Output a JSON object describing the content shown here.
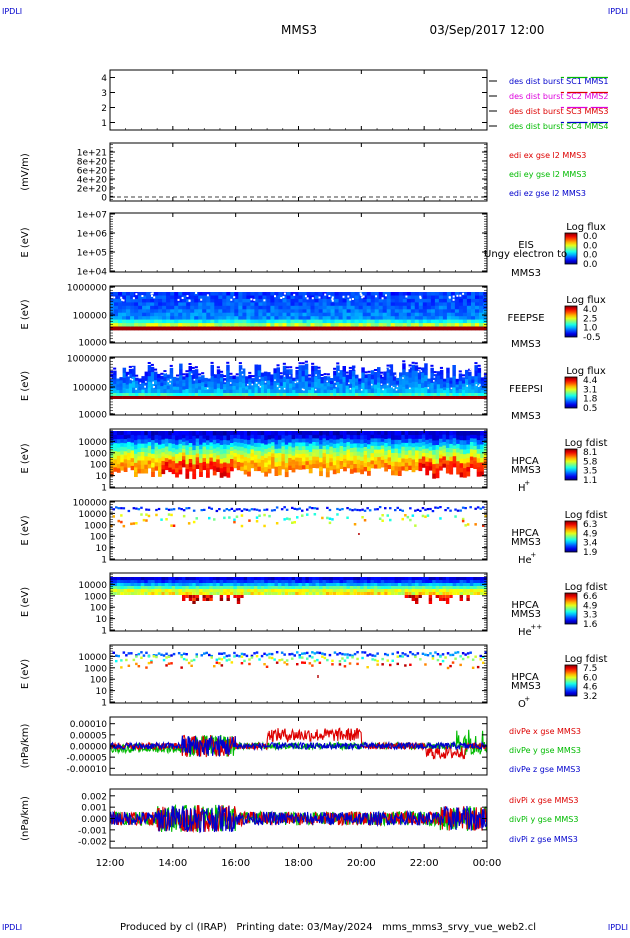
{
  "header": {
    "corner_tl": "IPDLI",
    "corner_tr": "IPDLI",
    "corner_bl": "IPDLI",
    "corner_br": "IPDLI",
    "mission": "MMS3",
    "date": "03/Sep/2017 12:00"
  },
  "footer": {
    "text": "Produced by cl (IRAP)   Printing date: 03/May/2024   mms_mms3_srvy_vue_web2.cl"
  },
  "colors": {
    "blue": "#0000cc",
    "red": "#dd0000",
    "magenta": "#dd00dd",
    "green": "#00bb00",
    "ink": "#000000"
  },
  "chart_data": [
    {
      "type": "line",
      "id": "burst",
      "ylim": [
        0.5,
        4.5
      ],
      "yticks": [
        "1",
        "2",
        "3",
        "4"
      ],
      "xticks": [
        "12:00",
        "14:00",
        "16:00",
        "18:00",
        "20:00",
        "22:00",
        "00:00"
      ],
      "series": [
        {
          "name": "des dist burst SC1 MMS1",
          "color": "#0000cc",
          "level": 1,
          "intervals_h": [
            [
              14.35,
              14.45
            ],
            [
              14.55,
              15.2
            ],
            [
              15.3,
              15.85
            ],
            [
              16.85,
              16.88
            ],
            [
              23.5,
              23.55
            ]
          ]
        },
        {
          "name": "des dist burst SC2 MMS2",
          "color": "#dd00dd",
          "level": 2,
          "intervals_h": [
            [
              14.35,
              14.45
            ],
            [
              14.55,
              15.2
            ],
            [
              15.3,
              15.85
            ],
            [
              16.85,
              16.88
            ],
            [
              23.5,
              23.55
            ]
          ]
        },
        {
          "name": "des dist burst SC3 MMS3",
          "color": "#dd0000",
          "level": 3,
          "intervals_h": [
            [
              14.35,
              14.45
            ],
            [
              14.55,
              15.2
            ],
            [
              15.3,
              15.85
            ],
            [
              16.85,
              16.88
            ],
            [
              23.5,
              23.55
            ]
          ]
        },
        {
          "name": "des dist burst SC4 MMS4",
          "color": "#00bb00",
          "level": 4,
          "intervals_h": [
            [
              14.35,
              14.45
            ],
            [
              14.55,
              15.2
            ],
            [
              15.3,
              15.85
            ],
            [
              16.85,
              16.88
            ],
            [
              23.5,
              23.55
            ]
          ]
        }
      ]
    },
    {
      "type": "line",
      "id": "edi",
      "ylabel": "(mV/m)",
      "yticks": [
        "0",
        "2e+20",
        "4e+20",
        "6e+20",
        "8e+20",
        "1e+21"
      ],
      "ylim": [
        0,
        1e+21
      ],
      "series": [
        {
          "name": "edi ex gse l2 MMS3",
          "color": "#dd0000"
        },
        {
          "name": "edi ey gse l2 MMS3",
          "color": "#00bb00"
        },
        {
          "name": "edi ez gse l2 MMS3",
          "color": "#0000cc",
          "value": 0
        }
      ]
    },
    {
      "type": "heatmap",
      "id": "eis",
      "ylabel": "E (eV)",
      "yticks": [
        "1e+04",
        "1e+05",
        "1e+06",
        "1e+07"
      ],
      "instrument": "EIS",
      "product": "Ungy electron to",
      "sc": "MMS3",
      "colorbar": {
        "title": "Log flux",
        "ticks": [
          "0.0",
          "0.0",
          "0.0",
          "0.0"
        ]
      },
      "fill": "empty"
    },
    {
      "type": "heatmap",
      "id": "feepse",
      "ylabel": "E (eV)",
      "yticks": [
        "10000",
        "100000",
        "1000000"
      ],
      "instrument": "FEEPSE",
      "sc": "MMS3",
      "colorbar": {
        "title": "Log flux",
        "ticks": [
          "4.0",
          "2.5",
          "1.0",
          "-0.5"
        ]
      },
      "fill": "electron-spectrogram"
    },
    {
      "type": "heatmap",
      "id": "feepsi",
      "ylabel": "E (eV)",
      "yticks": [
        "10000",
        "100000",
        "1000000"
      ],
      "instrument": "FEEPSI",
      "sc": "MMS3",
      "colorbar": {
        "title": "Log flux",
        "ticks": [
          "4.4",
          "3.1",
          "1.8",
          "0.5"
        ]
      },
      "fill": "ion-spectrogram"
    },
    {
      "type": "heatmap",
      "id": "hpca_h",
      "ylabel": "E (eV)",
      "yticks": [
        "1",
        "10",
        "100",
        "1000",
        "10000"
      ],
      "instrument": "HPCA",
      "sc": "MMS3",
      "species": "H",
      "charge": "+",
      "colorbar": {
        "title": "Log fdist",
        "ticks": [
          "8.1",
          "5.8",
          "3.5",
          "1.1"
        ]
      },
      "fill": "hpca-proton"
    },
    {
      "type": "heatmap",
      "id": "hpca_he",
      "ylabel": "E (eV)",
      "yticks": [
        "1",
        "10",
        "100",
        "1000",
        "10000",
        "100000"
      ],
      "instrument": "HPCA",
      "sc": "MMS3",
      "species": "He",
      "charge": "+",
      "colorbar": {
        "title": "Log fdist",
        "ticks": [
          "6.3",
          "4.9",
          "3.4",
          "1.9"
        ]
      },
      "fill": "hpca-he1"
    },
    {
      "type": "heatmap",
      "id": "hpca_hepp",
      "ylabel": "E (eV)",
      "yticks": [
        "1",
        "10",
        "100",
        "1000",
        "10000"
      ],
      "instrument": "HPCA",
      "sc": "MMS3",
      "species": "He",
      "charge": "++",
      "colorbar": {
        "title": "Log fdist",
        "ticks": [
          "6.6",
          "4.9",
          "3.3",
          "1.6"
        ]
      },
      "fill": "hpca-he2"
    },
    {
      "type": "heatmap",
      "id": "hpca_o",
      "ylabel": "E (eV)",
      "yticks": [
        "1",
        "10",
        "100",
        "1000",
        "10000"
      ],
      "instrument": "HPCA",
      "sc": "MMS3",
      "species": "O",
      "charge": "+",
      "colorbar": {
        "title": "Log fdist",
        "ticks": [
          "7.5",
          "6.0",
          "4.6",
          "3.2"
        ]
      },
      "fill": "hpca-oxygen"
    },
    {
      "type": "line",
      "id": "divpe",
      "ylabel": "(nPa/km)",
      "yticks": [
        "-0.00010",
        "-0.00005",
        "0.00000",
        "0.00005",
        "0.00010"
      ],
      "ylim": [
        -0.00013,
        0.00013
      ],
      "series": [
        {
          "name": "divPe x gse MMS3",
          "color": "#dd0000"
        },
        {
          "name": "divPe y gse MMS3",
          "color": "#00bb00"
        },
        {
          "name": "divPe z gse MMS3",
          "color": "#0000cc"
        }
      ]
    },
    {
      "type": "line",
      "id": "divpi",
      "ylabel": "(nPa/km)",
      "yticks": [
        "-0.002",
        "-0.001",
        "0.000",
        "0.001",
        "0.002"
      ],
      "ylim": [
        -0.0026,
        0.0026
      ],
      "xticks": [
        "12:00",
        "14:00",
        "16:00",
        "18:00",
        "20:00",
        "22:00",
        "00:00"
      ],
      "series": [
        {
          "name": "divPi x gse MMS3",
          "color": "#dd0000"
        },
        {
          "name": "divPi y gse MMS3",
          "color": "#00bb00"
        },
        {
          "name": "divPi z gse MMS3",
          "color": "#0000cc"
        }
      ]
    }
  ]
}
